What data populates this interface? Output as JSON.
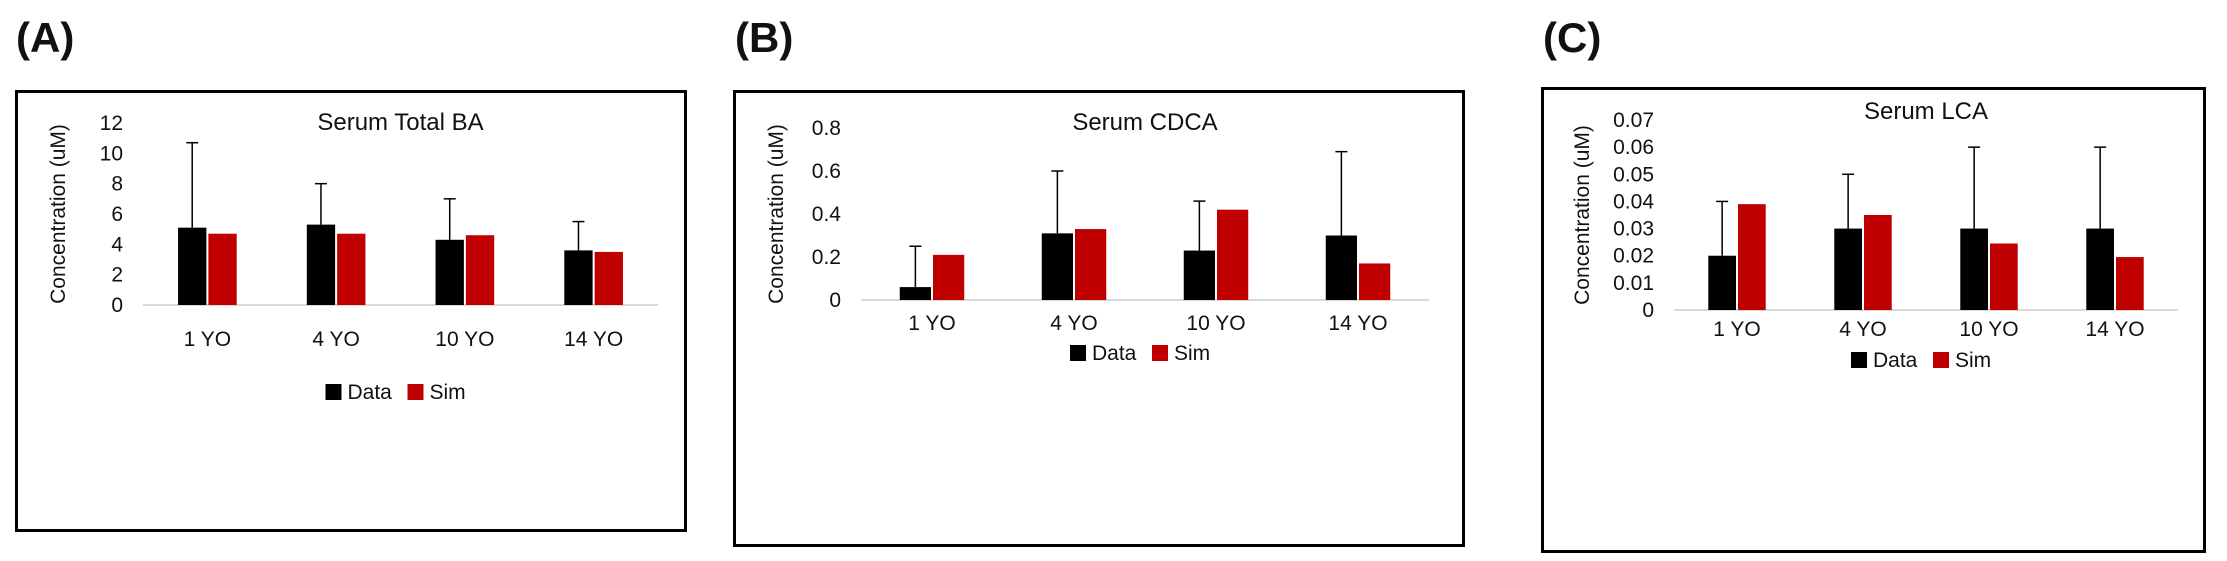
{
  "panel_labels": [
    "(A)",
    "(B)",
    "(C)"
  ],
  "chart_data": [
    {
      "type": "bar",
      "title": "Serum Total BA",
      "xlabel": "",
      "ylabel": "Concentration (uM)",
      "ylim": [
        0,
        12
      ],
      "yticks": [
        "0",
        "2",
        "4",
        "6",
        "8",
        "10",
        "12"
      ],
      "categories": [
        "1 YO",
        "4 YO",
        "10 YO",
        "14 YO"
      ],
      "series": [
        {
          "name": "Data",
          "values": [
            5.1,
            5.3,
            4.3,
            3.6
          ],
          "error_plus": [
            5.6,
            2.7,
            2.7,
            1.9
          ],
          "color": "#000000"
        },
        {
          "name": "Sim",
          "values": [
            4.7,
            4.7,
            4.6,
            3.5
          ],
          "color": "#c00000"
        }
      ],
      "grid": false,
      "legend": "bottom"
    },
    {
      "type": "bar",
      "title": "Serum CDCA",
      "xlabel": "",
      "ylabel": "Concentration (uM)",
      "ylim": [
        0,
        0.8
      ],
      "yticks": [
        "0",
        "0.2",
        "0.4",
        "0.6",
        "0.8"
      ],
      "categories": [
        "1 YO",
        "4 YO",
        "10 YO",
        "14 YO"
      ],
      "series": [
        {
          "name": "Data",
          "values": [
            0.06,
            0.31,
            0.23,
            0.3
          ],
          "error_plus": [
            0.19,
            0.29,
            0.23,
            0.39
          ],
          "color": "#000000"
        },
        {
          "name": "Sim",
          "values": [
            0.21,
            0.33,
            0.42,
            0.17
          ],
          "color": "#c00000"
        }
      ],
      "grid": false,
      "legend": "bottom"
    },
    {
      "type": "bar",
      "title": "Serum LCA",
      "xlabel": "",
      "ylabel": "Concentration (uM)",
      "ylim": [
        0,
        0.07
      ],
      "yticks": [
        "0",
        "0.01",
        "0.02",
        "0.03",
        "0.04",
        "0.05",
        "0.06",
        "0.07"
      ],
      "categories": [
        "1 YO",
        "4 YO",
        "10 YO",
        "14 YO"
      ],
      "series": [
        {
          "name": "Data",
          "values": [
            0.02,
            0.03,
            0.03,
            0.03
          ],
          "error_plus": [
            0.02,
            0.02,
            0.03,
            0.03
          ],
          "color": "#000000"
        },
        {
          "name": "Sim",
          "values": [
            0.039,
            0.035,
            0.0245,
            0.0195
          ],
          "color": "#c00000"
        }
      ],
      "grid": false,
      "legend": "bottom"
    }
  ]
}
